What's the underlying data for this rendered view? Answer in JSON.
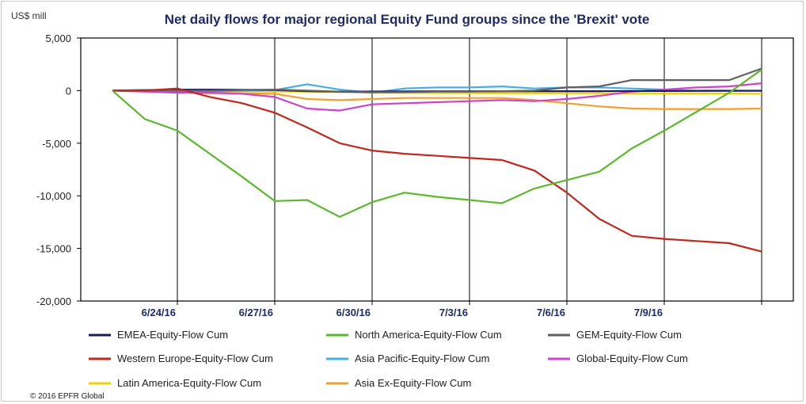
{
  "chart_data": {
    "type": "line",
    "title": "Net daily flows  for major regional Equity Fund groups since the 'Brexit' vote",
    "ylabel": "US$ mill",
    "ylim": [
      -20000,
      5000
    ],
    "yticks": [
      5000,
      0,
      -5000,
      -10000,
      -15000,
      -20000
    ],
    "ytick_labels": [
      "5,000",
      "0",
      "-5,000",
      "-10,000",
      "-15,000",
      "-20,000"
    ],
    "xlim": [
      0,
      20
    ],
    "xticks": [
      2,
      5,
      8,
      11,
      14,
      17
    ],
    "xtick_labels": [
      "6/24/16",
      "6/27/16",
      "6/30/16",
      "7/3/16",
      "7/6/16",
      "7/9/16"
    ],
    "grid": "vertical",
    "series": [
      {
        "name": "EMEA-Equity-Flow Cum",
        "color": "#1a1a5e",
        "x": [
          0,
          1,
          2,
          3,
          4,
          5,
          6,
          7,
          8,
          9,
          10,
          11,
          12,
          13,
          14,
          15,
          16,
          17,
          18,
          19,
          20
        ],
        "values": [
          0,
          50,
          100,
          100,
          80,
          60,
          -50,
          -100,
          -80,
          -70,
          -60,
          -60,
          -50,
          -60,
          -50,
          -50,
          -40,
          -40,
          -30,
          -20,
          -20
        ]
      },
      {
        "name": "North America-Equity-Flow Cum",
        "color": "#5cb82d",
        "x": [
          0,
          1,
          2,
          3,
          4,
          5,
          6,
          7,
          8,
          9,
          10,
          11,
          12,
          13,
          14,
          15,
          16,
          17,
          18,
          19,
          20
        ],
        "values": [
          0,
          -2700,
          -3800,
          -6000,
          -8200,
          -10500,
          -10400,
          -12000,
          -10600,
          -9700,
          -10100,
          -10400,
          -10700,
          -9300,
          -8500,
          -7700,
          -5500,
          -3800,
          -2000,
          -200,
          2000
        ]
      },
      {
        "name": "GEM-Equity-Flow Cum",
        "color": "#606060",
        "x": [
          0,
          1,
          2,
          3,
          4,
          5,
          6,
          7,
          8,
          9,
          10,
          11,
          12,
          13,
          14,
          15,
          16,
          17,
          18,
          19,
          20
        ],
        "values": [
          0,
          50,
          0,
          0,
          50,
          100,
          0,
          -100,
          -150,
          -150,
          -100,
          -100,
          -50,
          0,
          300,
          400,
          1000,
          1000,
          1000,
          1000,
          2100
        ]
      },
      {
        "name": "Western Europe-Equity-Flow Cum",
        "color": "#c0281e",
        "x": [
          0,
          1,
          2,
          3,
          4,
          5,
          6,
          7,
          8,
          9,
          10,
          11,
          12,
          13,
          14,
          15,
          16,
          17,
          18,
          19,
          20
        ],
        "values": [
          0,
          0,
          200,
          -600,
          -1200,
          -2100,
          -3500,
          -5000,
          -5700,
          -6000,
          -6200,
          -6400,
          -6600,
          -7600,
          -9700,
          -12200,
          -13800,
          -14100,
          -14300,
          -14500,
          -15300
        ]
      },
      {
        "name": "Asia Pacific-Equity-Flow Cum",
        "color": "#45b0e0",
        "x": [
          0,
          1,
          2,
          3,
          4,
          5,
          6,
          7,
          8,
          9,
          10,
          11,
          12,
          13,
          14,
          15,
          16,
          17,
          18,
          19,
          20
        ],
        "values": [
          0,
          -50,
          -100,
          -100,
          0,
          50,
          600,
          100,
          -200,
          200,
          300,
          300,
          400,
          200,
          300,
          300,
          200,
          100,
          0,
          0,
          0
        ]
      },
      {
        "name": "Global-Equity-Flow Cum",
        "color": "#cc44cc",
        "x": [
          0,
          1,
          2,
          3,
          4,
          5,
          6,
          7,
          8,
          9,
          10,
          11,
          12,
          13,
          14,
          15,
          16,
          17,
          18,
          19,
          20
        ],
        "values": [
          0,
          -100,
          -200,
          -200,
          -300,
          -600,
          -1700,
          -1900,
          -1300,
          -1200,
          -1100,
          -1000,
          -900,
          -1000,
          -800,
          -500,
          -100,
          100,
          300,
          400,
          700
        ]
      },
      {
        "name": "Latin America-Equity-Flow Cum",
        "color": "#f0d000",
        "x": [
          0,
          1,
          2,
          3,
          4,
          5,
          6,
          7,
          8,
          9,
          10,
          11,
          12,
          13,
          14,
          15,
          16,
          17,
          18,
          19,
          20
        ],
        "values": [
          0,
          -20,
          -40,
          -60,
          -60,
          -80,
          -100,
          -150,
          -200,
          -220,
          -230,
          -230,
          -240,
          -240,
          -250,
          -250,
          -260,
          -260,
          -270,
          -280,
          -300
        ]
      },
      {
        "name": "Asia Ex-Equity-Flow Cum",
        "color": "#f0a030",
        "x": [
          0,
          1,
          2,
          3,
          4,
          5,
          6,
          7,
          8,
          9,
          10,
          11,
          12,
          13,
          14,
          15,
          16,
          17,
          18,
          19,
          20
        ],
        "values": [
          0,
          -50,
          -150,
          -250,
          -250,
          -300,
          -800,
          -900,
          -800,
          -700,
          -700,
          -700,
          -700,
          -900,
          -1200,
          -1500,
          -1700,
          -1750,
          -1750,
          -1750,
          -1700
        ]
      }
    ]
  },
  "copyright": "© 2016 EPFR Global"
}
